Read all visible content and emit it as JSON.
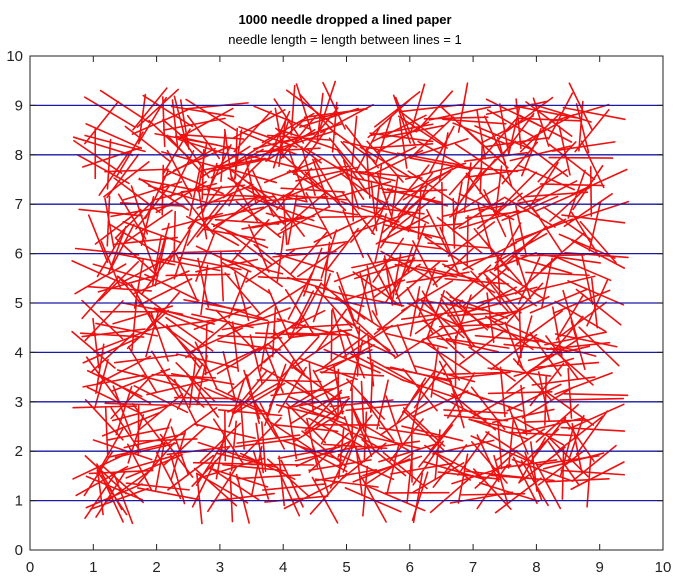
{
  "chart_data": {
    "type": "scatter",
    "title": "1000 needle dropped a lined paper",
    "subtitle": "needle length = length between lines = 1",
    "xlabel": "",
    "ylabel": "",
    "xlim": [
      0,
      10
    ],
    "ylim": [
      0,
      10
    ],
    "x_ticks": [
      0,
      1,
      2,
      3,
      4,
      5,
      6,
      7,
      8,
      9,
      10
    ],
    "y_ticks": [
      0,
      1,
      2,
      3,
      4,
      5,
      6,
      7,
      8,
      9,
      10
    ],
    "grid": false,
    "legend": "none",
    "ruled_lines": [
      1,
      2,
      3,
      4,
      5,
      6,
      7,
      8,
      9
    ],
    "ruled_lines_x_range": [
      0,
      10
    ],
    "needle_count": 1000,
    "needle_length": 1,
    "needle_center_x_range": [
      1,
      9
    ],
    "needle_center_y_range": [
      1,
      9
    ],
    "colors": {
      "needles": "#ee1111",
      "ruled_lines": "#1a1aa6",
      "axes": "#222222",
      "background": "#ffffff"
    }
  }
}
